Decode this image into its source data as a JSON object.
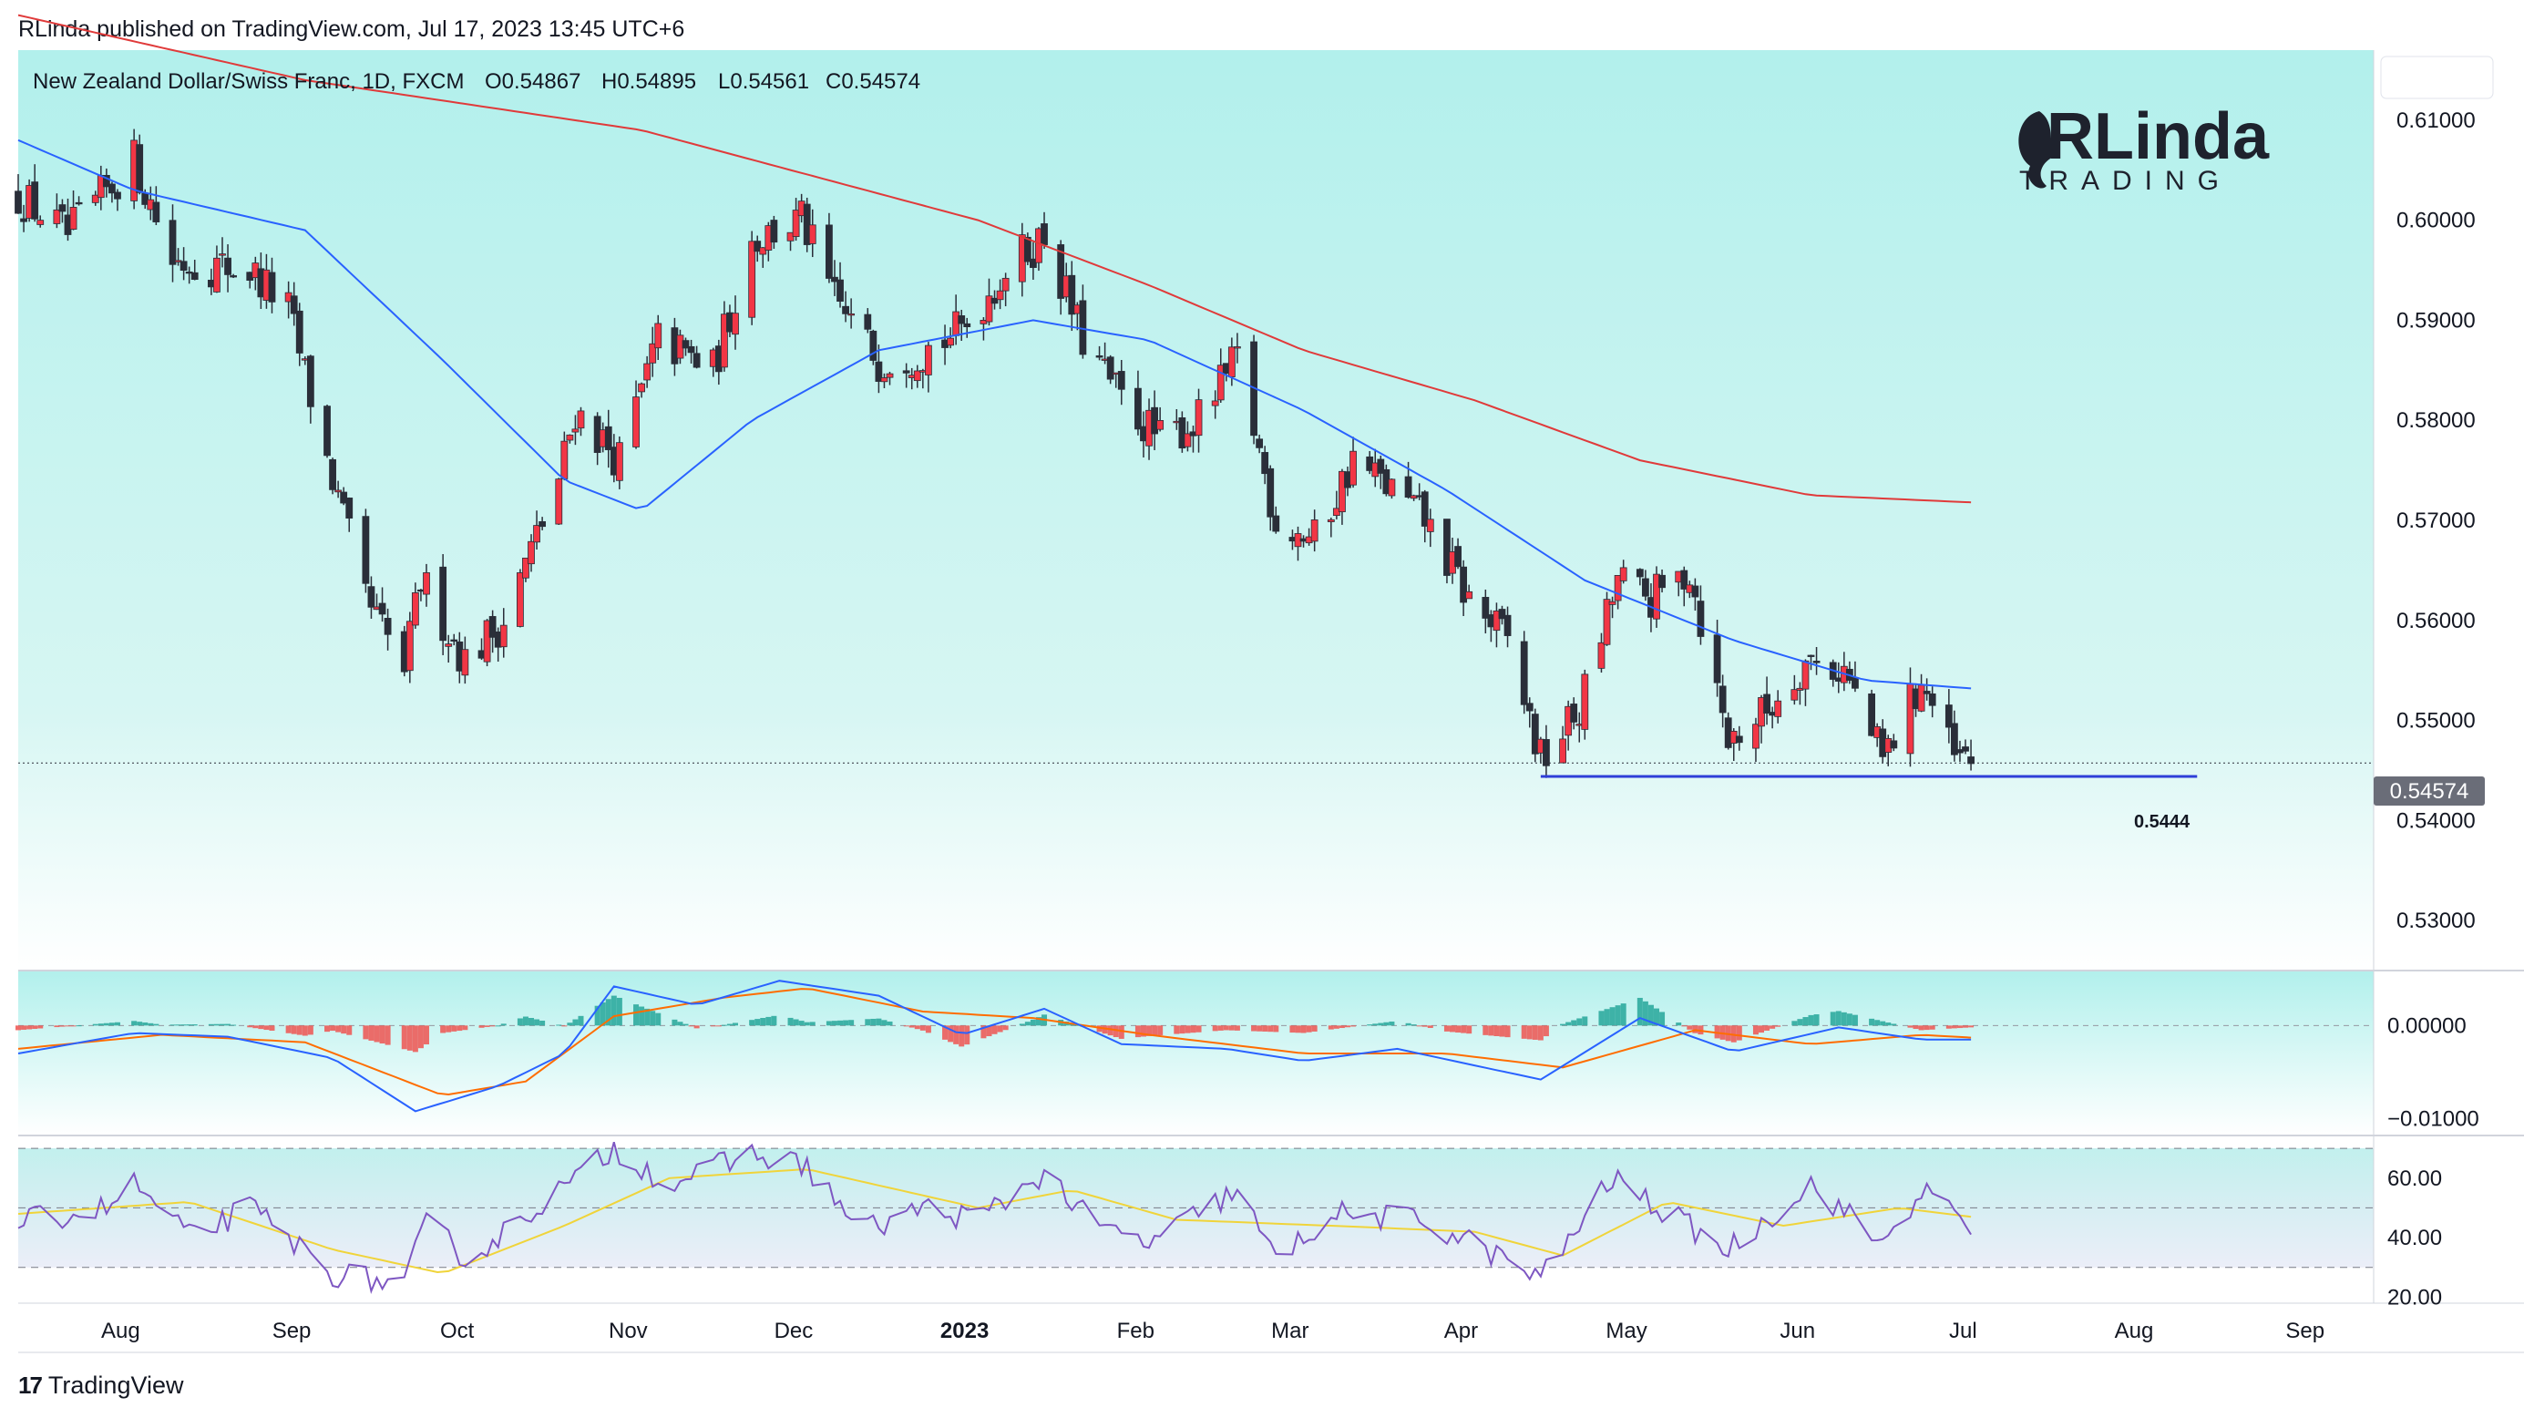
{
  "publisher_line": "RLinda published on TradingView.com, Jul 17, 2023 13:45 UTC+6",
  "footer_brand": "TradingView",
  "footer_logo_glyph": "17",
  "watermark": {
    "brand": "RLinda",
    "tagline": "TRADING"
  },
  "colors": {
    "up": "#f23645",
    "down": "#2a2e39",
    "wick": "#2a2e39",
    "ma_fast": "#2962ff",
    "ma_slow": "#e03a3a",
    "support": "#2f3fd8",
    "bg_top": "#b2f0ec",
    "bg_bottom": "#ffffff",
    "macd_line": "#2962ff",
    "signal_line": "#ff6d00",
    "hist_pos": "#26a69a",
    "hist_neg": "#ef5350",
    "rsi_line": "#7e57c2",
    "rsi_ma": "#f0d43a"
  },
  "chart_data": {
    "type": "candlestick",
    "symbol_line": {
      "symbol": "New Zealand Dollar/Swiss Franc, 1D, FXCM",
      "open": "O0.54867",
      "high": "H0.54895",
      "low": "L0.54561",
      "close": "C0.54574"
    },
    "y_axis": {
      "min": 0.525,
      "max": 0.617,
      "ticks": [
        "0.61000",
        "0.60000",
        "0.59000",
        "0.58000",
        "0.57000",
        "0.56000",
        "0.55000",
        "0.54000",
        "0.53000"
      ]
    },
    "x_labels": [
      "Aug",
      "Sep",
      "Oct",
      "Nov",
      "Dec",
      "2023",
      "Feb",
      "Mar",
      "Apr",
      "May",
      "Jun",
      "Jul",
      "Aug",
      "Sep"
    ],
    "x_label_dates": [
      "2022-08-01",
      "2022-09-01",
      "2022-10-01",
      "2022-11-01",
      "2022-12-01",
      "2023-01-01",
      "2023-02-01",
      "2023-03-01",
      "2023-04-01",
      "2023-05-01",
      "2023-06-01",
      "2023-07-01",
      "2023-08-01",
      "2023-09-01"
    ],
    "date_range": [
      "2022-07-25",
      "2023-09-25"
    ],
    "last_date": "2023-07-14",
    "last_price": "0.54574",
    "support_level": {
      "value": 0.5444,
      "label": "0.5444",
      "from": "2023-04-27",
      "to": "2023-08-24"
    },
    "price_anchors": [
      [
        "2022-07-25",
        0.6025
      ],
      [
        "2022-08-03",
        0.5985
      ],
      [
        "2022-08-15",
        0.606
      ],
      [
        "2022-08-22",
        0.596
      ],
      [
        "2022-09-05",
        0.595
      ],
      [
        "2022-09-12",
        0.591
      ],
      [
        "2022-09-19",
        0.576
      ],
      [
        "2022-09-26",
        0.562
      ],
      [
        "2022-10-03",
        0.555
      ],
      [
        "2022-10-06",
        0.564
      ],
      [
        "2022-10-14",
        0.556
      ],
      [
        "2022-10-21",
        0.56
      ],
      [
        "2022-10-31",
        0.574
      ],
      [
        "2022-11-03",
        0.581
      ],
      [
        "2022-11-11",
        0.576
      ],
      [
        "2022-11-18",
        0.588
      ],
      [
        "2022-11-28",
        0.585
      ],
      [
        "2022-12-05",
        0.598
      ],
      [
        "2022-12-14",
        0.6
      ],
      [
        "2022-12-20",
        0.592
      ],
      [
        "2022-12-28",
        0.586
      ],
      [
        "2023-01-05",
        0.587
      ],
      [
        "2023-01-12",
        0.589
      ],
      [
        "2023-01-20",
        0.595
      ],
      [
        "2023-01-27",
        0.5985
      ],
      [
        "2023-02-03",
        0.588
      ],
      [
        "2023-02-10",
        0.582
      ],
      [
        "2023-02-17",
        0.578
      ],
      [
        "2023-02-24",
        0.58
      ],
      [
        "2023-03-03",
        0.586
      ],
      [
        "2023-03-10",
        0.57
      ],
      [
        "2023-03-17",
        0.568
      ],
      [
        "2023-03-24",
        0.576
      ],
      [
        "2023-03-31",
        0.573
      ],
      [
        "2023-04-06",
        0.57
      ],
      [
        "2023-04-14",
        0.562
      ],
      [
        "2023-04-21",
        0.558
      ],
      [
        "2023-04-27",
        0.546
      ],
      [
        "2023-05-04",
        0.551
      ],
      [
        "2023-05-11",
        0.564
      ],
      [
        "2023-05-17",
        0.562
      ],
      [
        "2023-05-24",
        0.565
      ],
      [
        "2023-05-31",
        0.548
      ],
      [
        "2023-06-07",
        0.551
      ],
      [
        "2023-06-14",
        0.556
      ],
      [
        "2023-06-21",
        0.555
      ],
      [
        "2023-06-28",
        0.546
      ],
      [
        "2023-07-05",
        0.554
      ],
      [
        "2023-07-11",
        0.546
      ],
      [
        "2023-07-14",
        0.5457
      ]
    ],
    "ma50_anchors": [
      [
        "2022-07-25",
        0.608
      ],
      [
        "2022-08-15",
        0.603
      ],
      [
        "2022-09-15",
        0.599
      ],
      [
        "2022-10-10",
        0.586
      ],
      [
        "2022-11-01",
        0.574
      ],
      [
        "2022-11-15",
        0.571
      ],
      [
        "2022-12-05",
        0.58
      ],
      [
        "2022-12-28",
        0.587
      ],
      [
        "2023-01-25",
        0.59
      ],
      [
        "2023-02-15",
        0.588
      ],
      [
        "2023-03-15",
        0.581
      ],
      [
        "2023-04-10",
        0.573
      ],
      [
        "2023-05-05",
        0.564
      ],
      [
        "2023-06-01",
        0.558
      ],
      [
        "2023-06-25",
        0.554
      ],
      [
        "2023-07-14",
        0.5532
      ]
    ],
    "ma200_anchors": [
      [
        "2022-07-25",
        0.6205
      ],
      [
        "2022-09-15",
        0.614
      ],
      [
        "2022-11-15",
        0.609
      ],
      [
        "2023-01-15",
        0.6
      ],
      [
        "2023-02-15",
        0.5935
      ],
      [
        "2023-03-15",
        0.587
      ],
      [
        "2023-04-15",
        0.582
      ],
      [
        "2023-05-15",
        0.576
      ],
      [
        "2023-06-15",
        0.5725
      ],
      [
        "2023-07-14",
        0.5718
      ]
    ],
    "macd": {
      "y_min": -0.0118,
      "y_max": 0.0058,
      "ticks": [
        "0.00000",
        "−0.01000"
      ],
      "macd_anchors": [
        [
          "2022-07-25",
          -0.003
        ],
        [
          "2022-08-15",
          -0.0008
        ],
        [
          "2022-09-01",
          -0.0012
        ],
        [
          "2022-09-20",
          -0.0035
        ],
        [
          "2022-10-05",
          -0.0092
        ],
        [
          "2022-10-20",
          -0.0065
        ],
        [
          "2022-11-01",
          -0.003
        ],
        [
          "2022-11-10",
          0.0042
        ],
        [
          "2022-11-25",
          0.0022
        ],
        [
          "2022-12-10",
          0.0048
        ],
        [
          "2022-12-28",
          0.0032
        ],
        [
          "2023-01-12",
          -0.001
        ],
        [
          "2023-01-27",
          0.0018
        ],
        [
          "2023-02-10",
          -0.002
        ],
        [
          "2023-03-01",
          -0.0025
        ],
        [
          "2023-03-15",
          -0.0038
        ],
        [
          "2023-04-01",
          -0.0025
        ],
        [
          "2023-04-27",
          -0.0058
        ],
        [
          "2023-05-15",
          0.0008
        ],
        [
          "2023-06-01",
          -0.0028
        ],
        [
          "2023-06-20",
          -0.0002
        ],
        [
          "2023-07-05",
          -0.0015
        ],
        [
          "2023-07-14",
          -0.0015
        ]
      ],
      "signal_anchors": [
        [
          "2022-07-25",
          -0.0025
        ],
        [
          "2022-08-20",
          -0.001
        ],
        [
          "2022-09-15",
          -0.0018
        ],
        [
          "2022-10-10",
          -0.0075
        ],
        [
          "2022-10-25",
          -0.006
        ],
        [
          "2022-11-10",
          0.001
        ],
        [
          "2022-11-30",
          0.003
        ],
        [
          "2022-12-15",
          0.004
        ],
        [
          "2023-01-05",
          0.0015
        ],
        [
          "2023-01-25",
          0.0008
        ],
        [
          "2023-02-15",
          -0.001
        ],
        [
          "2023-03-15",
          -0.003
        ],
        [
          "2023-04-10",
          -0.003
        ],
        [
          "2023-05-01",
          -0.0045
        ],
        [
          "2023-05-25",
          -0.0005
        ],
        [
          "2023-06-15",
          -0.002
        ],
        [
          "2023-07-05",
          -0.001
        ],
        [
          "2023-07-14",
          -0.0013
        ]
      ]
    },
    "rsi": {
      "y_min": 18,
      "y_max": 74,
      "ticks": [
        "60.00",
        "40.00",
        "20.00"
      ],
      "bands": [
        70,
        50,
        30
      ],
      "rsi_anchors": [
        [
          "2022-07-25",
          45
        ],
        [
          "2022-08-10",
          50
        ],
        [
          "2022-08-15",
          58
        ],
        [
          "2022-08-25",
          40
        ],
        [
          "2022-09-05",
          50
        ],
        [
          "2022-09-20",
          28
        ],
        [
          "2022-10-03",
          24
        ],
        [
          "2022-10-07",
          45
        ],
        [
          "2022-10-15",
          32
        ],
        [
          "2022-10-25",
          48
        ],
        [
          "2022-11-05",
          62
        ],
        [
          "2022-11-10",
          70
        ],
        [
          "2022-11-20",
          58
        ],
        [
          "2022-12-05",
          68
        ],
        [
          "2022-12-15",
          64
        ],
        [
          "2022-12-25",
          42
        ],
        [
          "2023-01-05",
          50
        ],
        [
          "2023-01-15",
          46
        ],
        [
          "2023-01-27",
          62
        ],
        [
          "2023-02-05",
          44
        ],
        [
          "2023-02-15",
          38
        ],
        [
          "2023-03-03",
          56
        ],
        [
          "2023-03-10",
          32
        ],
        [
          "2023-03-20",
          48
        ],
        [
          "2023-04-05",
          46
        ],
        [
          "2023-04-15",
          38
        ],
        [
          "2023-04-27",
          26
        ],
        [
          "2023-05-10",
          60
        ],
        [
          "2023-05-20",
          48
        ],
        [
          "2023-05-31",
          36
        ],
        [
          "2023-06-15",
          58
        ],
        [
          "2023-06-28",
          38
        ],
        [
          "2023-07-05",
          56
        ],
        [
          "2023-07-14",
          43
        ]
      ],
      "rsi_ma_anchors": [
        [
          "2022-07-25",
          48
        ],
        [
          "2022-08-25",
          52
        ],
        [
          "2022-09-20",
          36
        ],
        [
          "2022-10-10",
          28
        ],
        [
          "2022-11-01",
          44
        ],
        [
          "2022-11-20",
          60
        ],
        [
          "2022-12-15",
          63
        ],
        [
          "2023-01-15",
          50
        ],
        [
          "2023-02-01",
          56
        ],
        [
          "2023-02-20",
          46
        ],
        [
          "2023-03-20",
          44
        ],
        [
          "2023-04-15",
          42
        ],
        [
          "2023-05-01",
          34
        ],
        [
          "2023-05-20",
          52
        ],
        [
          "2023-06-10",
          44
        ],
        [
          "2023-07-01",
          50
        ],
        [
          "2023-07-14",
          47
        ]
      ]
    }
  }
}
